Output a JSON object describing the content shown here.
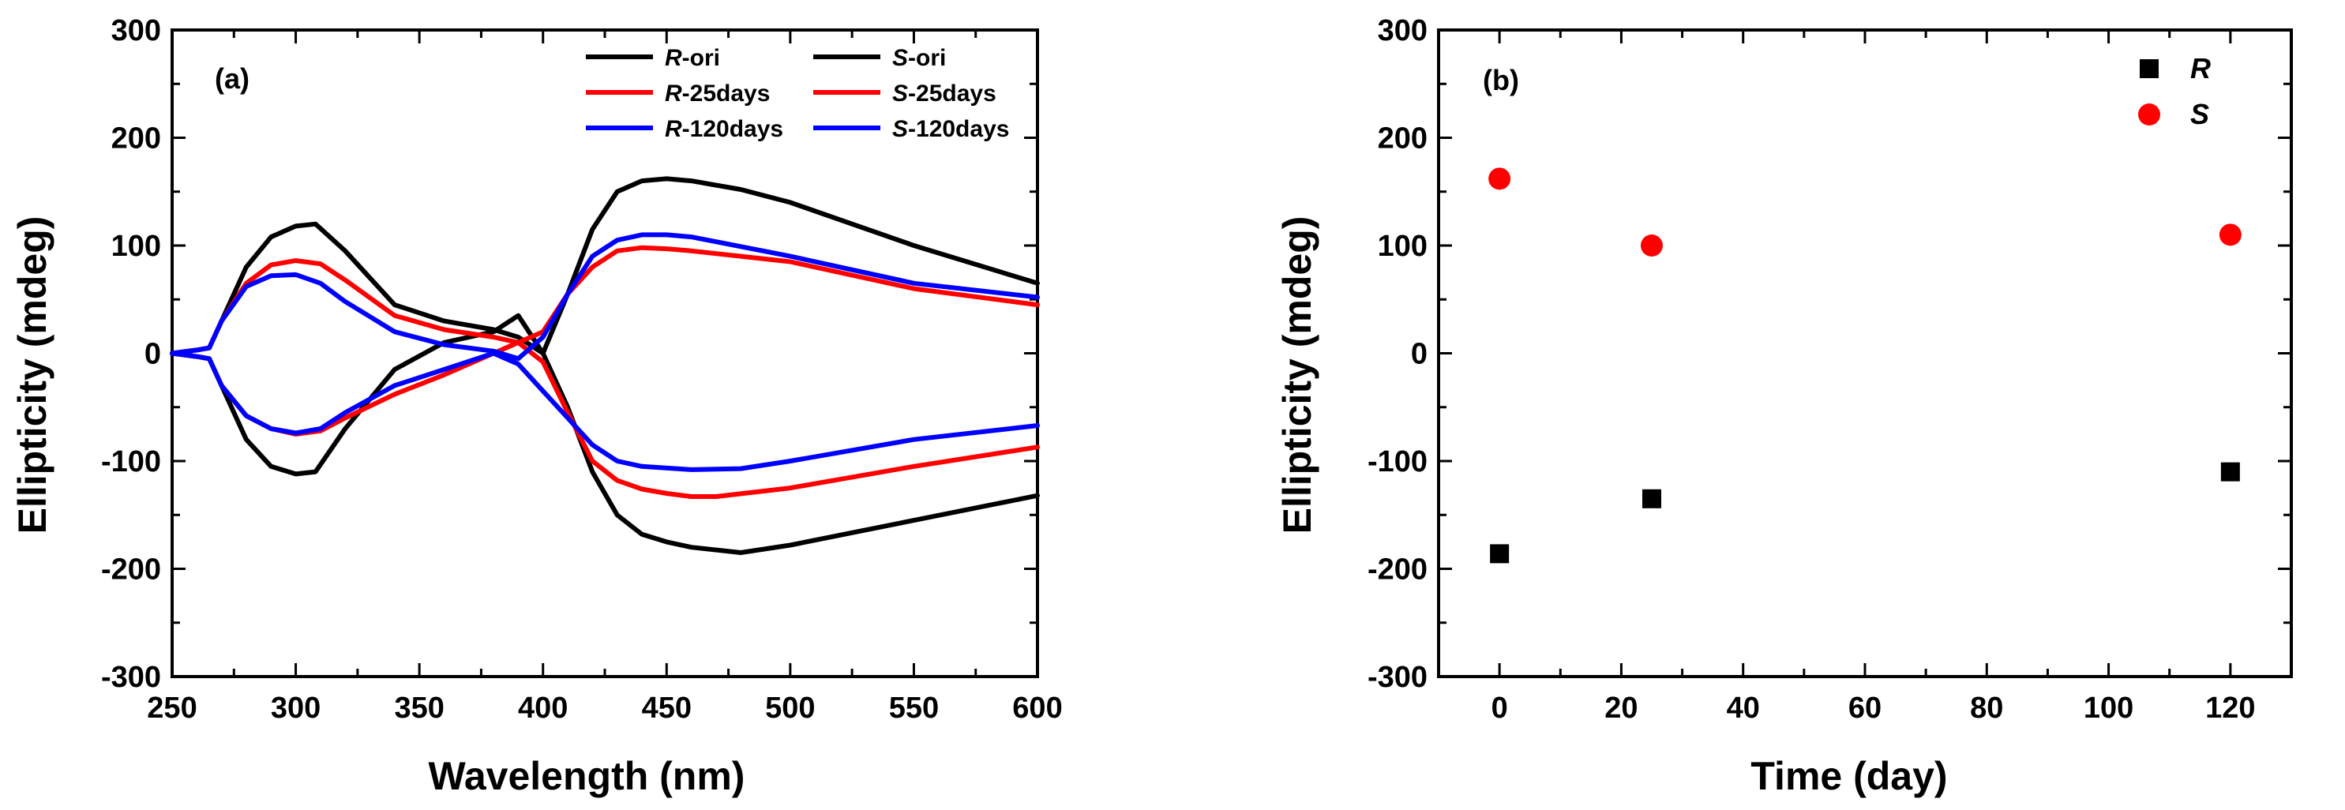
{
  "chart_data": [
    {
      "type": "line",
      "panel_label": "(a)",
      "xlabel": "Wavelength (nm)",
      "ylabel": "Ellipticity (mdeg)",
      "xlim": [
        250,
        600
      ],
      "ylim": [
        -300,
        300
      ],
      "xticks": [
        250,
        300,
        350,
        400,
        450,
        500,
        550,
        600
      ],
      "yticks": [
        -300,
        -200,
        -100,
        0,
        100,
        200,
        300
      ],
      "grid": false,
      "legend_position": "top-right",
      "series": [
        {
          "name": "R-ori",
          "label_italic": "R",
          "label_rest": "-ori",
          "color": "#000000",
          "x": [
            250,
            260,
            265,
            270,
            280,
            290,
            300,
            308,
            320,
            340,
            360,
            380,
            390,
            400,
            410,
            420,
            430,
            440,
            450,
            460,
            480,
            500,
            550,
            600
          ],
          "y": [
            0,
            -3,
            -5,
            -30,
            -80,
            -105,
            -112,
            -110,
            -70,
            -15,
            10,
            20,
            35,
            0,
            -50,
            -110,
            -150,
            -168,
            -175,
            -180,
            -185,
            -178,
            -155,
            -132
          ]
        },
        {
          "name": "S-ori",
          "label_italic": "S",
          "label_rest": "-ori",
          "color": "#000000",
          "x": [
            250,
            260,
            265,
            270,
            280,
            290,
            300,
            308,
            320,
            340,
            360,
            380,
            390,
            400,
            410,
            420,
            430,
            440,
            450,
            460,
            480,
            500,
            550,
            600
          ],
          "y": [
            0,
            3,
            5,
            30,
            80,
            108,
            118,
            120,
            95,
            45,
            30,
            22,
            15,
            0,
            55,
            115,
            150,
            160,
            162,
            160,
            152,
            140,
            100,
            65
          ]
        },
        {
          "name": "R-25days",
          "label_italic": "R",
          "label_rest": "-25days",
          "color": "#ff0000",
          "x": [
            250,
            260,
            265,
            270,
            280,
            290,
            300,
            310,
            320,
            340,
            360,
            380,
            390,
            400,
            410,
            420,
            430,
            440,
            450,
            460,
            470,
            500,
            550,
            600
          ],
          "y": [
            0,
            -3,
            -5,
            -30,
            -58,
            -70,
            -75,
            -72,
            -60,
            -38,
            -20,
            0,
            10,
            -8,
            -55,
            -100,
            -118,
            -126,
            -130,
            -133,
            -133,
            -125,
            -105,
            -87
          ]
        },
        {
          "name": "S-25days",
          "label_italic": "S",
          "label_rest": "-25days",
          "color": "#ff0000",
          "x": [
            250,
            260,
            265,
            270,
            280,
            290,
            300,
            310,
            320,
            340,
            360,
            380,
            390,
            400,
            410,
            420,
            430,
            440,
            450,
            460,
            500,
            550,
            600
          ],
          "y": [
            0,
            3,
            5,
            30,
            65,
            82,
            86,
            83,
            68,
            35,
            22,
            15,
            10,
            20,
            55,
            80,
            95,
            98,
            97,
            95,
            85,
            60,
            45
          ]
        },
        {
          "name": "R-120days",
          "label_italic": "R",
          "label_rest": "-120days",
          "color": "#0000ff",
          "x": [
            250,
            260,
            265,
            270,
            280,
            290,
            300,
            310,
            320,
            340,
            360,
            380,
            390,
            400,
            410,
            420,
            430,
            440,
            460,
            480,
            500,
            550,
            600
          ],
          "y": [
            0,
            -3,
            -5,
            -30,
            -58,
            -70,
            -74,
            -70,
            -55,
            -30,
            -15,
            0,
            -10,
            -35,
            -60,
            -85,
            -100,
            -105,
            -108,
            -107,
            -100,
            -80,
            -67
          ]
        },
        {
          "name": "S-120days",
          "label_italic": "S",
          "label_rest": "-120days",
          "color": "#0000ff",
          "x": [
            250,
            260,
            265,
            270,
            280,
            290,
            300,
            310,
            320,
            340,
            360,
            380,
            390,
            400,
            410,
            420,
            430,
            440,
            450,
            460,
            500,
            550,
            600
          ],
          "y": [
            0,
            3,
            5,
            30,
            62,
            72,
            73,
            65,
            48,
            20,
            8,
            2,
            -5,
            15,
            55,
            90,
            105,
            110,
            110,
            108,
            90,
            65,
            52
          ]
        }
      ]
    },
    {
      "type": "scatter",
      "panel_label": "(b)",
      "xlabel": "Time (day)",
      "ylabel": "Ellipticity (mdeg)",
      "xlim": [
        -10,
        130
      ],
      "ylim": [
        -300,
        300
      ],
      "xticks": [
        0,
        20,
        40,
        60,
        80,
        100,
        120
      ],
      "yticks": [
        -300,
        -200,
        -100,
        0,
        100,
        200,
        300
      ],
      "grid": false,
      "legend_position": "top-right",
      "series": [
        {
          "name": "R",
          "marker": "square",
          "color": "#000000",
          "x": [
            0,
            25,
            120
          ],
          "y": [
            -186,
            -135,
            -110
          ]
        },
        {
          "name": "S",
          "marker": "circle",
          "color": "#ff0000",
          "x": [
            0,
            25,
            120
          ],
          "y": [
            162,
            100,
            110
          ]
        }
      ]
    }
  ]
}
